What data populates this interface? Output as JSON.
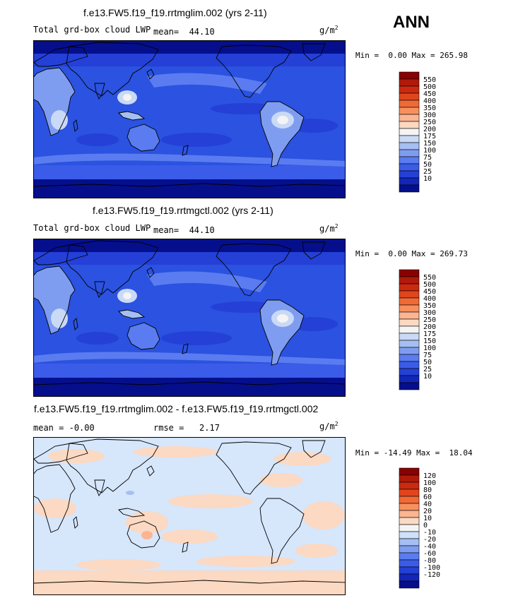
{
  "season": "ANN",
  "units_label": "g/m",
  "units_exp": "2",
  "panels": [
    {
      "title": "f.e13.FW5.f19_f19.rrtmglim.002 (yrs 2-11)",
      "variable": "Total grd-box cloud LWP",
      "stat_label": "mean=",
      "stat_value": "44.10",
      "min_label": "Min =",
      "min_value": "0.00",
      "max_label": "Max =",
      "max_value": "265.98",
      "colorbar": {
        "levels": [
          "550",
          "500",
          "450",
          "400",
          "350",
          "300",
          "250",
          "200",
          "175",
          "150",
          "100",
          "75",
          "50",
          "25",
          "10"
        ],
        "colors": [
          "#8b0000",
          "#b01a0a",
          "#cc2a10",
          "#e0461e",
          "#f06a36",
          "#f8905e",
          "#fbb592",
          "#fbd9c2",
          "#f4f4f4",
          "#c9d9f6",
          "#a6bff2",
          "#7f9df0",
          "#5a7cf0",
          "#3a5ce8",
          "#2440d6",
          "#1226b8",
          "#050f8c"
        ]
      },
      "base_color": "#2b52e0"
    },
    {
      "title": "f.e13.FW5.f19_f19.rrtmgctl.002 (yrs 2-11)",
      "variable": "Total grd-box cloud LWP",
      "stat_label": "mean=",
      "stat_value": "44.10",
      "min_label": "Min =",
      "min_value": "0.00",
      "max_label": "Max =",
      "max_value": "269.73",
      "colorbar": {
        "levels": [
          "550",
          "500",
          "450",
          "400",
          "350",
          "300",
          "250",
          "200",
          "175",
          "150",
          "100",
          "75",
          "50",
          "25",
          "10"
        ],
        "colors": [
          "#8b0000",
          "#b01a0a",
          "#cc2a10",
          "#e0461e",
          "#f06a36",
          "#f8905e",
          "#fbb592",
          "#fbd9c2",
          "#f4f4f4",
          "#c9d9f6",
          "#a6bff2",
          "#7f9df0",
          "#5a7cf0",
          "#3a5ce8",
          "#2440d6",
          "#1226b8",
          "#050f8c"
        ]
      },
      "base_color": "#2b52e0"
    },
    {
      "title": "f.e13.FW5.f19_f19.rrtmglim.002 - f.e13.FW5.f19_f19.rrtmgctl.002",
      "mean_label": "mean =",
      "mean_value": "-0.00",
      "rmse_label": "rmse =",
      "rmse_value": "2.17",
      "min_label": "Min =",
      "min_value": "-14.49",
      "max_label": "Max =",
      "max_value": "18.04",
      "colorbar": {
        "levels": [
          "120",
          "100",
          "80",
          "60",
          "40",
          "20",
          "10",
          "0",
          "-10",
          "-20",
          "-40",
          "-60",
          "-80",
          "-100",
          "-120"
        ],
        "colors": [
          "#8b0000",
          "#b01a0a",
          "#cc2a10",
          "#e0461e",
          "#f06a36",
          "#f8905e",
          "#fbb592",
          "#fbd9c2",
          "#f4f4f4",
          "#cfe0fb",
          "#a6bff2",
          "#7f9df0",
          "#5a7cf0",
          "#3a5ce8",
          "#2440d6",
          "#1226b8",
          "#050f8c"
        ]
      },
      "base_color": "#d6e6fb"
    }
  ],
  "chart_data": [
    {
      "type": "heatmap",
      "title": "f.e13.FW5.f19_f19.rrtmglim.002 (yrs 2-11)",
      "variable": "Total grd-box cloud LWP",
      "units": "g/m2",
      "mean": 44.1,
      "min": 0.0,
      "max": 265.98,
      "contour_levels": [
        10,
        25,
        50,
        75,
        100,
        150,
        175,
        200,
        250,
        300,
        350,
        400,
        450,
        500,
        550
      ]
    },
    {
      "type": "heatmap",
      "title": "f.e13.FW5.f19_f19.rrtmgctl.002 (yrs 2-11)",
      "variable": "Total grd-box cloud LWP",
      "units": "g/m2",
      "mean": 44.1,
      "min": 0.0,
      "max": 269.73,
      "contour_levels": [
        10,
        25,
        50,
        75,
        100,
        150,
        175,
        200,
        250,
        300,
        350,
        400,
        450,
        500,
        550
      ]
    },
    {
      "type": "heatmap",
      "title": "f.e13.FW5.f19_f19.rrtmglim.002 - f.e13.FW5.f19_f19.rrtmgctl.002",
      "units": "g/m2",
      "mean": -0.0,
      "rmse": 2.17,
      "min": -14.49,
      "max": 18.04,
      "contour_levels": [
        -120,
        -100,
        -80,
        -60,
        -40,
        -20,
        -10,
        0,
        10,
        20,
        40,
        60,
        80,
        100,
        120
      ]
    }
  ]
}
